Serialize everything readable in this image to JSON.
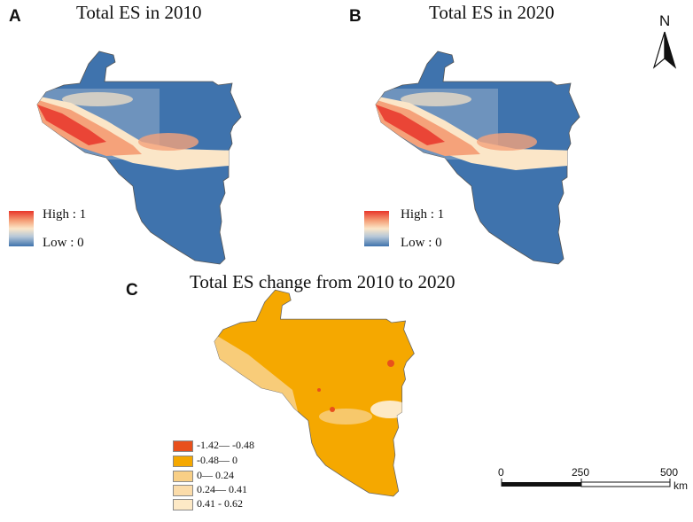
{
  "panels": [
    {
      "letter": "A",
      "title": "Total ES in 2010",
      "legend_high": "High : 1",
      "legend_low": "Low : 0"
    },
    {
      "letter": "B",
      "title": "Total ES in 2020",
      "legend_high": "High : 1",
      "legend_low": "Low : 0"
    },
    {
      "letter": "C",
      "title": "Total ES change from 2010 to 2020"
    }
  ],
  "change_legend": [
    {
      "label": "-1.42— -0.48",
      "color": "#e8501c"
    },
    {
      "label": "-0.48— 0",
      "color": "#f5a800"
    },
    {
      "label": "0—  0.24",
      "color": "#f8cf86"
    },
    {
      "label": "0.24— 0.41",
      "color": "#fbdcaa"
    },
    {
      "label": "0.41 - 0.62",
      "color": "#fde9c6"
    }
  ],
  "scale_bar": {
    "ticks": [
      "0",
      "250",
      "500"
    ],
    "unit": "km"
  },
  "north_arrow": {
    "label": "N",
    "icon": "north-arrow-icon"
  },
  "colors": {
    "es_high": "#e8352a",
    "es_mid": "#fbe6c8",
    "es_low": "#3f73ad",
    "change_base": "#f5a800"
  }
}
